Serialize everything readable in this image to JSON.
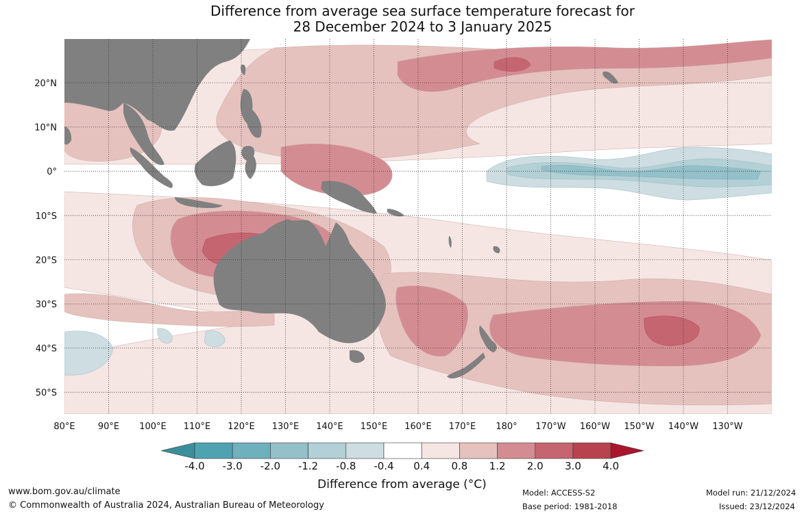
{
  "title": {
    "line1": "Difference from average sea surface temperature forecast for",
    "line2": "28 December 2024 to 3 January 2025"
  },
  "map": {
    "lon_labels": [
      "80°E",
      "90°E",
      "100°E",
      "110°E",
      "120°E",
      "130°E",
      "140°E",
      "150°E",
      "160°E",
      "170°E",
      "180°",
      "170°W",
      "160°W",
      "150°W",
      "140°W",
      "130°W"
    ],
    "lat_labels": [
      "20°N",
      "10°N",
      "0°",
      "10°S",
      "20°S",
      "30°S",
      "40°S",
      "50°S"
    ],
    "land_color": "#808080"
  },
  "colorbar": {
    "ticks": [
      "-4.0",
      "-3.0",
      "-2.0",
      "-1.2",
      "-0.8",
      "-0.4",
      "0.4",
      "0.8",
      "1.2",
      "2.0",
      "3.0",
      "4.0"
    ],
    "colors": [
      "#3b8f9c",
      "#4fa3b1",
      "#6fb0bd",
      "#93c0c9",
      "#b2d0d6",
      "#cddde1",
      "#ffffff",
      "#f5e6e4",
      "#e6c2be",
      "#d48c93",
      "#c56570",
      "#b8434f",
      "#a8172e"
    ],
    "title": "Difference from average ($^\\circ$C)",
    "title_display": "Difference from average (°C)"
  },
  "footer": {
    "website": "www.bom.gov.au/climate",
    "copyright": "© Commonwealth of Australia 2024, Australian Bureau of Meteorology",
    "model": "Model: ACCESS-S2",
    "base_period": "Base period: 1981-2018",
    "model_run": "Model run: 21/12/2024",
    "issued": "Issued: 23/12/2024"
  }
}
